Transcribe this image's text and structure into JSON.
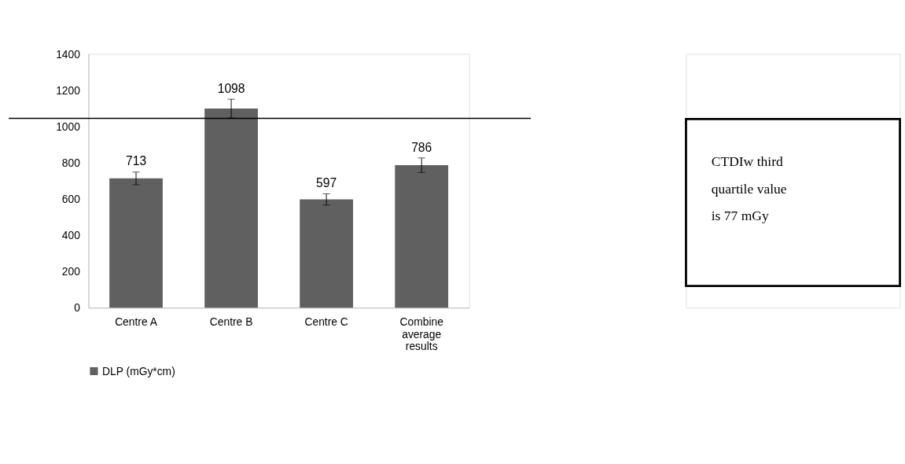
{
  "chart_data": {
    "type": "bar",
    "categories": [
      "Centre A",
      "Centre B",
      "Centre C",
      "Combine average results"
    ],
    "series": [
      {
        "name": "DLP (mGy*cm)",
        "color": "#606060",
        "values": [
          713,
          1098,
          597,
          786
        ],
        "errors": [
          35,
          52,
          31,
          40
        ]
      }
    ],
    "ylim": [
      0,
      1400
    ],
    "yticks": [
      0,
      200,
      400,
      600,
      800,
      1000,
      1200,
      1400
    ],
    "data_labels": true,
    "grid": false,
    "legend": "bottom",
    "ref_lines": [
      {
        "axis": "y",
        "value": 1044,
        "label": null,
        "color": "#000000"
      }
    ],
    "annotations": [
      "CTDIw third quartile value is 77 mGy"
    ]
  }
}
